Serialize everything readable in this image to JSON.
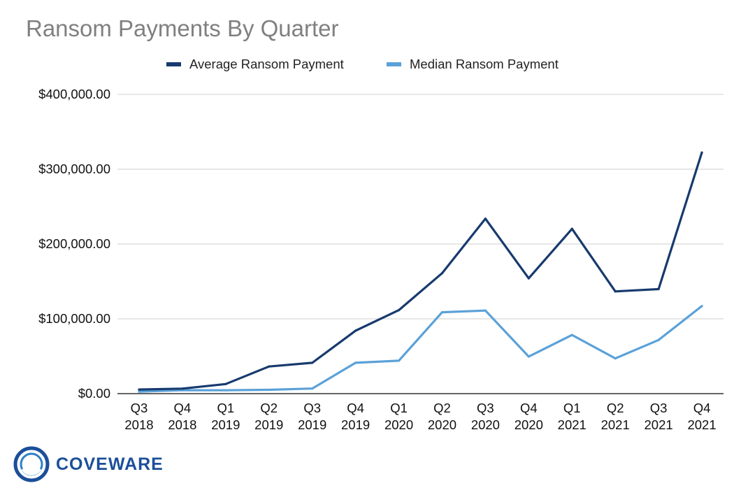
{
  "chart_data": {
    "type": "line",
    "title": "Ransom Payments By Quarter",
    "categories": [
      "Q3 2018",
      "Q4 2018",
      "Q1 2019",
      "Q2 2019",
      "Q3 2019",
      "Q4 2019",
      "Q1 2020",
      "Q2 2020",
      "Q3 2020",
      "Q4 2020",
      "Q1 2021",
      "Q2 2021",
      "Q3 2021",
      "Q4 2021"
    ],
    "category_lines": [
      [
        "Q3",
        "2018"
      ],
      [
        "Q4",
        "2018"
      ],
      [
        "Q1",
        "2019"
      ],
      [
        "Q2",
        "2019"
      ],
      [
        "Q3",
        "2019"
      ],
      [
        "Q4",
        "2019"
      ],
      [
        "Q1",
        "2020"
      ],
      [
        "Q2",
        "2020"
      ],
      [
        "Q3",
        "2020"
      ],
      [
        "Q4",
        "2020"
      ],
      [
        "Q1",
        "2021"
      ],
      [
        "Q2",
        "2021"
      ],
      [
        "Q3",
        "2021"
      ],
      [
        "Q4",
        "2021"
      ]
    ],
    "series": [
      {
        "name": "Average Ransom Payment",
        "color": "#173a6e",
        "values": [
          5500,
          6700,
          12800,
          36300,
          41200,
          84100,
          111600,
          161000,
          233800,
          154100,
          220300,
          136600,
          139700,
          322200
        ]
      },
      {
        "name": "Median Ransom Payment",
        "color": "#5ba1d8",
        "values": [
          2700,
          4600,
          4500,
          5100,
          6800,
          41200,
          44000,
          108800,
          111000,
          49500,
          78400,
          47100,
          71700,
          117000
        ]
      }
    ],
    "ylim": [
      0,
      400000
    ],
    "yticks": [
      0,
      100000,
      200000,
      300000,
      400000
    ],
    "ytick_labels": [
      "$0.00",
      "$100,000.00",
      "$200,000.00",
      "$300,000.00",
      "$400,000.00"
    ],
    "grid": true,
    "legend_position": "top-center"
  },
  "brand": {
    "logo_text": "COVEWARE",
    "logo_icon": "concentric-circles-icon"
  }
}
